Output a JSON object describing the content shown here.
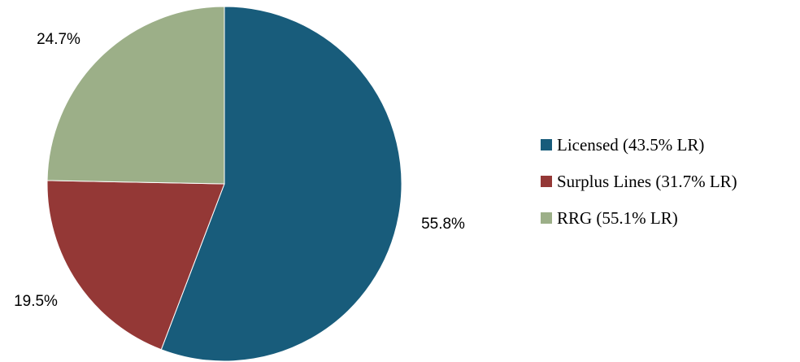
{
  "chart_data": {
    "type": "pie",
    "slices": [
      {
        "name": "Licensed (43.5% LR)",
        "value": 55.8,
        "label": "55.8%",
        "color": "#185c7b"
      },
      {
        "name": "Surplus Lines (31.7% LR)",
        "value": 19.5,
        "label": "19.5%",
        "color": "#943836"
      },
      {
        "name": "RRG (55.1% LR)",
        "value": 24.7,
        "label": "24.7%",
        "color": "#9caf88"
      }
    ],
    "start": "12 o'clock",
    "direction": "clockwise",
    "legend_position": "right"
  }
}
